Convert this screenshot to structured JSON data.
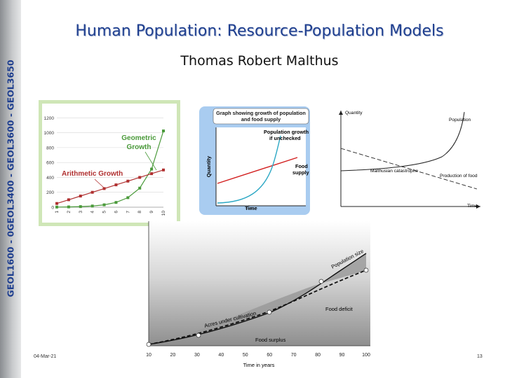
{
  "sidebar": {
    "text": "GEOL1600 - 0GEOL3400 - GEOL3600 - GEOL3650"
  },
  "header": {
    "title": "Human Population: Resource-Population Models",
    "subtitle": "Thomas Robert Malthus"
  },
  "footer": {
    "date": "04-Mar-21",
    "page": "13"
  },
  "colors": {
    "accent_blue": "#1f3f8f",
    "geometric_green": "#4a9a3a",
    "arithmetic_red": "#b03030",
    "panel_blue": "#a9ccf0"
  },
  "fig1": {
    "labels": {
      "geometric": [
        "Geometric",
        "Growth"
      ],
      "arithmetic": "Arithmetic Growth"
    },
    "chart_data": {
      "type": "line",
      "x": [
        1,
        2,
        3,
        4,
        5,
        6,
        7,
        8,
        9,
        10
      ],
      "y_ticks": [
        "0",
        "200",
        "400",
        "600",
        "800",
        "1000",
        "1200"
      ],
      "x_ticks": [
        "1",
        "2",
        "3",
        "4",
        "5",
        "6",
        "7",
        "8",
        "9",
        "10"
      ],
      "ylim": [
        0,
        1250
      ],
      "series": [
        {
          "name": "Geometric Growth",
          "values": [
            2,
            4,
            8,
            16,
            32,
            64,
            128,
            256,
            512,
            1024
          ]
        },
        {
          "name": "Arithmetic Growth",
          "values": [
            50,
            100,
            150,
            200,
            250,
            300,
            350,
            400,
            450,
            500
          ]
        }
      ]
    }
  },
  "fig2": {
    "title_line1": "Graph showing growth of population",
    "title_line2": "and food supply",
    "ylabel": "Quantity",
    "xlabel": "Time",
    "label_pop": [
      "Population growth",
      "if unchecked"
    ],
    "label_food": [
      "Food",
      "supply"
    ]
  },
  "fig3": {
    "ylabel": "Quantity",
    "xlabel": "Time",
    "label_population": "Population",
    "label_catastrophe": "Malthusian catastrophe",
    "label_food": "Production of food"
  },
  "fig4": {
    "label_population": "Population size",
    "label_acres": "Acres under cultivation",
    "label_deficit": "Food deficit",
    "label_surplus": "Food surplus",
    "xlabel": "Time in years",
    "x_ticks": [
      "10",
      "20",
      "30",
      "40",
      "50",
      "60",
      "70",
      "80",
      "90",
      "100"
    ]
  }
}
